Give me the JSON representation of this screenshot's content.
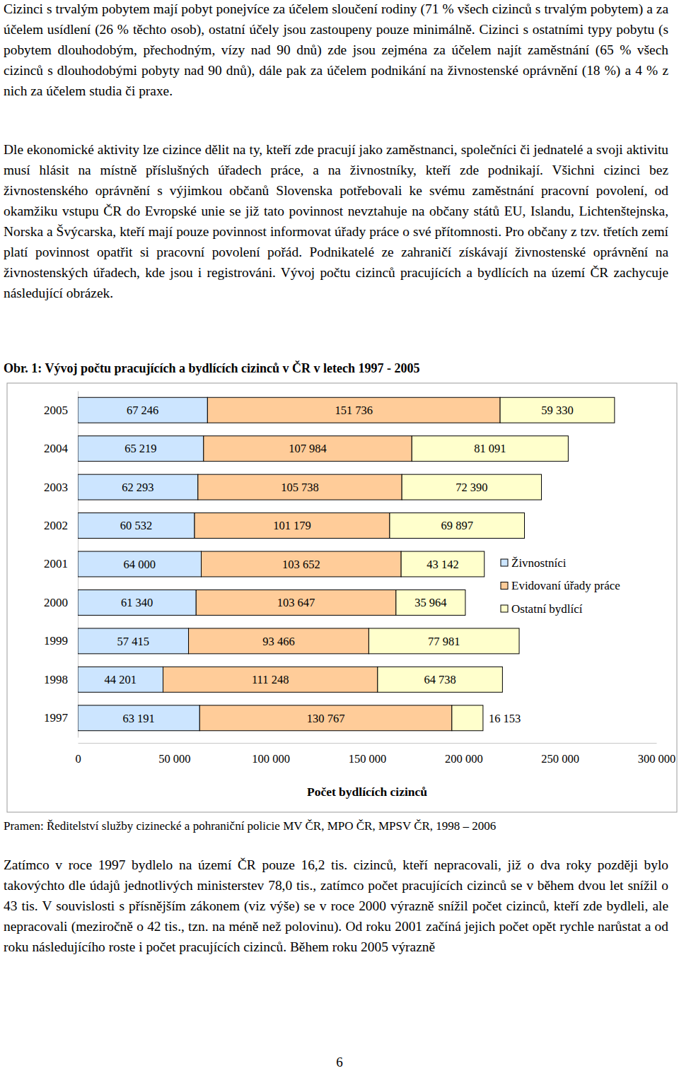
{
  "document": {
    "paragraphs_before": [
      "Cizinci s trvalým pobytem mají pobyt ponejvíce za účelem sloučení rodiny (71 % všech cizinců s trvalým pobytem) a za účelem usídlení (26 % těchto osob), ostatní účely jsou zastoupeny pouze minimálně. Cizinci s ostatními typy pobytu (s pobytem dlouhodobým, přechodným, vízy nad 90 dnů) zde jsou zejména za účelem najít zaměstnání (65 % všech cizinců s dlouhodobými pobyty nad 90 dnů), dále pak za účelem podnikání na živnostenské oprávnění (18 %) a 4 % z nich za účelem studia či praxe.",
      "Dle ekonomické aktivity lze cizince dělit na ty, kteří zde pracují jako zaměstnanci, společníci či jednatelé a svoji aktivitu musí hlásit na místně příslušných úřadech práce, a na živnostníky, kteří zde podnikají. Všichni cizinci bez živnostenského oprávnění s výjimkou občanů Slovenska potřebovali ke svému zaměstnání pracovní povolení, od okamžiku vstupu ČR do Evropské unie se již tato povinnost nevztahuje na občany států EU, Islandu, Lichtenštejnska, Norska a Švýcarska, kteří mají pouze povinnost informovat úřady práce o své přítomnosti. Pro občany z tzv. třetích zemí platí povinnost opatřit si pracovní povolení pořád. Podnikatelé ze zahraničí získávají živnostenské oprávnění na živnostenských úřadech, kde jsou i registrováni. Vývoj počtu cizinců pracujících a bydlících na území ČR zachycuje následující obrázek."
    ],
    "caption": "Obr. 1: Vývoj počtu pracujících a bydlících cizinců v ČR v letech 1997 - 2005",
    "source": "Pramen: Ředitelství služby cizinecké a pohraniční policie MV ČR, MPO ČR, MPSV ČR, 1998 – 2006",
    "paragraphs_after": [
      "Zatímco v roce 1997 bydlelo na území ČR pouze 16,2 tis. cizinců, kteří nepracovali, již o dva roky později bylo takovýchto dle údajů jednotlivých ministerstev 78,0 tis., zatímco počet pracujících cizinců se v během dvou let snížil o 43 tis. V souvislosti s přísnějším zákonem (viz výše) se v roce 2000 výrazně snížil počet cizinců, kteří zde bydleli, ale nepracovali (meziročně o 42 tis., tzn. na méně než polovinu). Od roku 2001 začíná jejich počet opět rychle narůstat a od roku následujícího roste i počet pracujících cizinců. Během roku 2005 výrazně"
    ],
    "page_number": 6
  },
  "chart_data": {
    "type": "bar",
    "orientation": "horizontal",
    "stacked": true,
    "data_labels": true,
    "legend": "right",
    "xlabel": "Počet bydlících cizinců",
    "categories": [
      "2005",
      "2004",
      "2003",
      "2002",
      "2001",
      "2000",
      "1999",
      "1998",
      "1997"
    ],
    "xlim": [
      0,
      300000
    ],
    "xticks": [
      0,
      {
        "value": 50000,
        "label": "50 000"
      },
      {
        "value": 100000,
        "label": "100 000"
      },
      {
        "value": 150000,
        "label": "150 000"
      },
      {
        "value": 200000,
        "label": "200 000"
      },
      {
        "value": 250000,
        "label": "250 000"
      },
      {
        "value": 300000,
        "label": "300 000"
      }
    ],
    "series": [
      {
        "name": "Živnostníci",
        "color": "#cce5ff",
        "values": [
          67246,
          65219,
          62293,
          60532,
          64000,
          61340,
          57415,
          44201,
          63191
        ],
        "value_labels": [
          "67 246",
          "65 219",
          "62 293",
          "60 532",
          "64 000",
          "61 340",
          "57 415",
          "44 201",
          "63 191"
        ]
      },
      {
        "name": "Evidovaní úřady práce",
        "color": "#ffcc99",
        "values": [
          151736,
          107984,
          105738,
          101179,
          103652,
          103647,
          93466,
          111248,
          130767
        ],
        "value_labels": [
          "151 736",
          "107 984",
          "105 738",
          "101 179",
          "103 652",
          "103 647",
          "93 466",
          "111 248",
          "130 767"
        ]
      },
      {
        "name": "Ostatní bydlící",
        "color": "#ffffcc",
        "values": [
          59330,
          81091,
          72390,
          69897,
          43142,
          35964,
          77981,
          64738,
          16153
        ],
        "value_labels": [
          "59 330",
          "81 091",
          "72 390",
          "69 897",
          "43 142",
          "35 964",
          "77 981",
          "64 738",
          "16 153"
        ]
      }
    ]
  }
}
